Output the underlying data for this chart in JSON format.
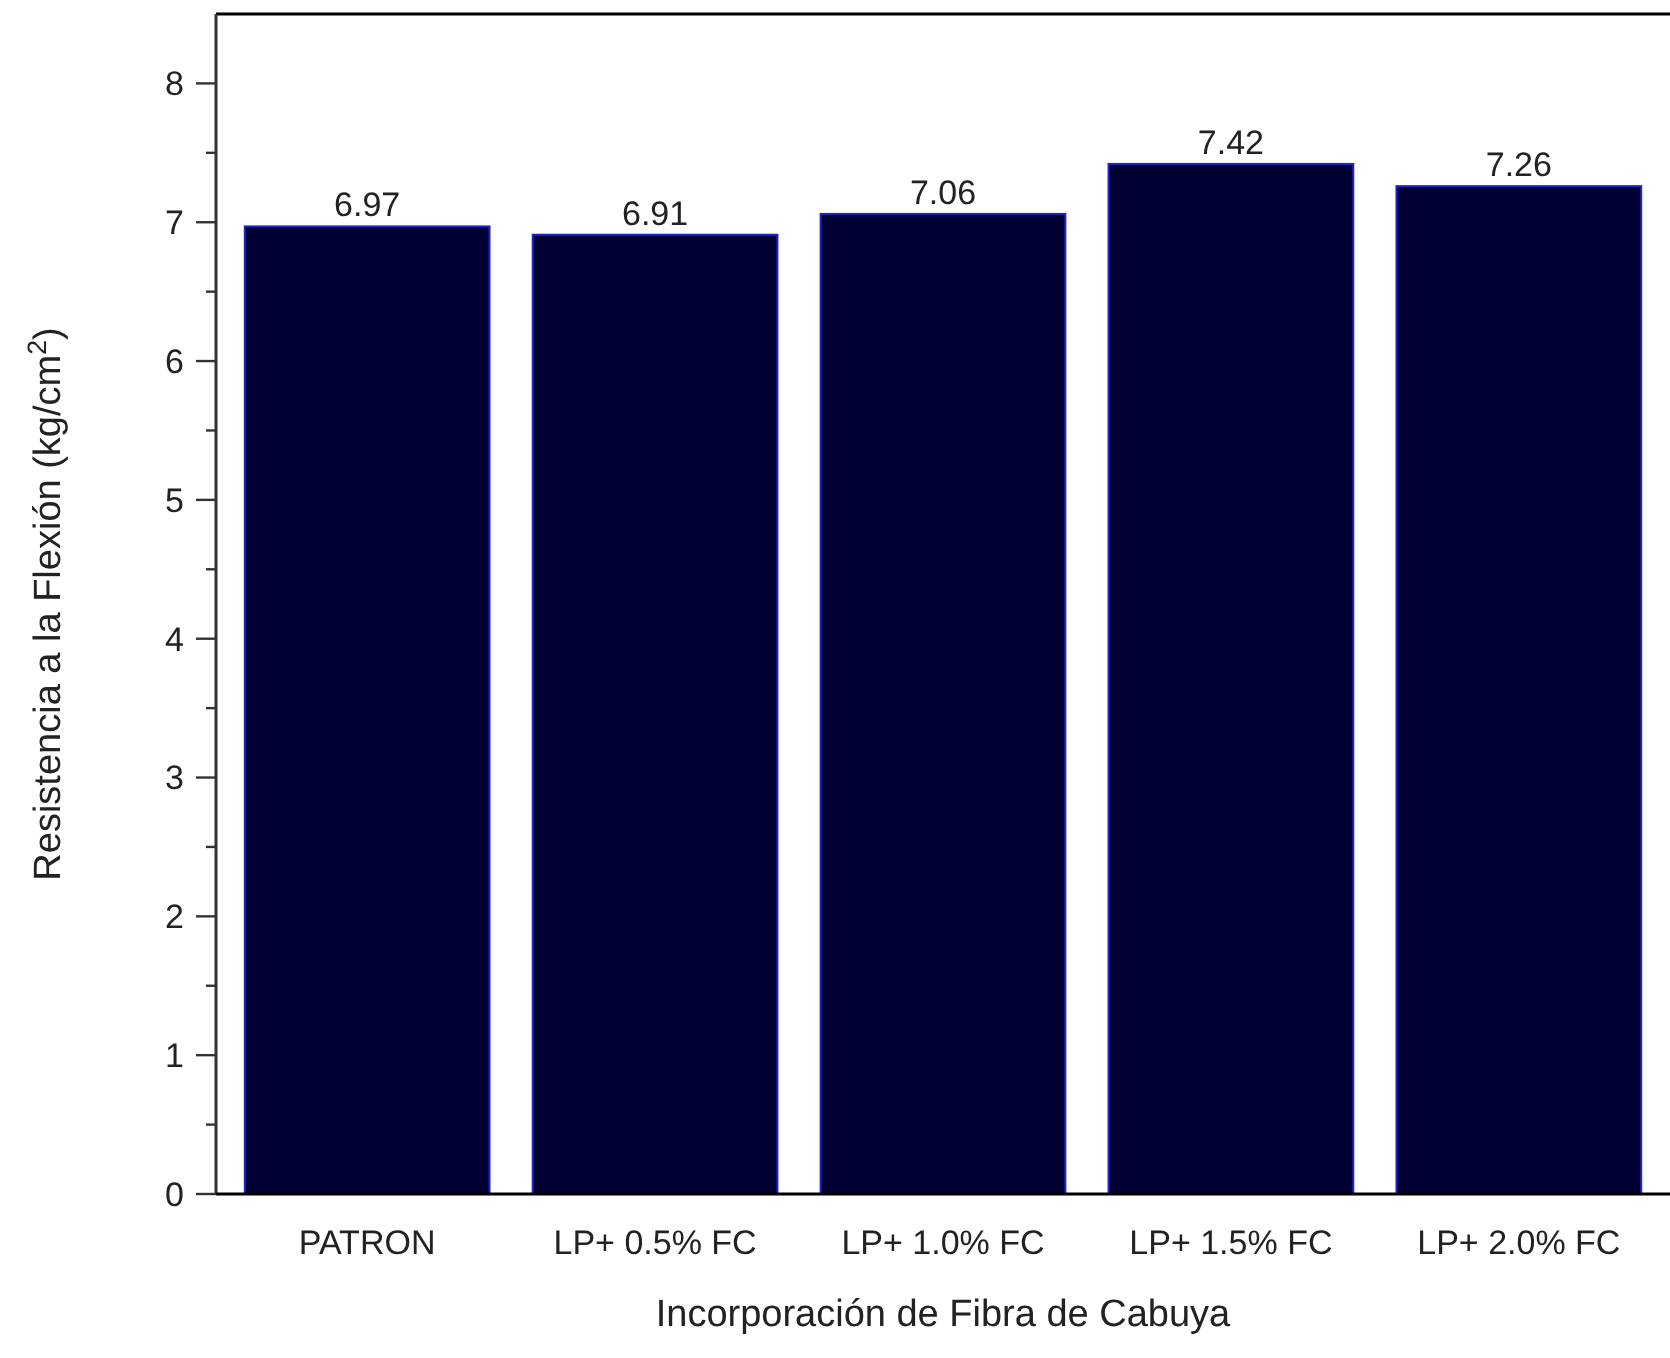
{
  "chart_data": {
    "type": "bar",
    "xlabel": "Incorporación de Fibra de Cabuya",
    "ylabel": "Resistencia a la Flexión (kg/cm$^{2}$)",
    "categories": [
      "PATRON",
      "LP+ 0.5% FC",
      "LP+ 1.0% FC",
      "LP+ 1.5% FC",
      "LP+ 2.0% FC"
    ],
    "values": [
      6.97,
      6.91,
      7.06,
      7.42,
      7.26
    ],
    "color": "#000033",
    "data_labels": true,
    "ylim": [
      0,
      8.5
    ],
    "yticks": [
      0,
      {
        "value": 0.5,
        "label": null
      },
      1,
      {
        "value": 1.5,
        "label": null
      },
      2,
      {
        "value": 2.5,
        "label": null
      },
      3,
      {
        "value": 3.5,
        "label": null
      },
      4,
      {
        "value": 4.5,
        "label": null
      },
      5,
      {
        "value": 5.5,
        "label": null
      },
      6,
      {
        "value": 6.5,
        "label": null
      },
      7,
      {
        "value": 7.5,
        "label": null
      },
      8
    ],
    "grid": false
  }
}
